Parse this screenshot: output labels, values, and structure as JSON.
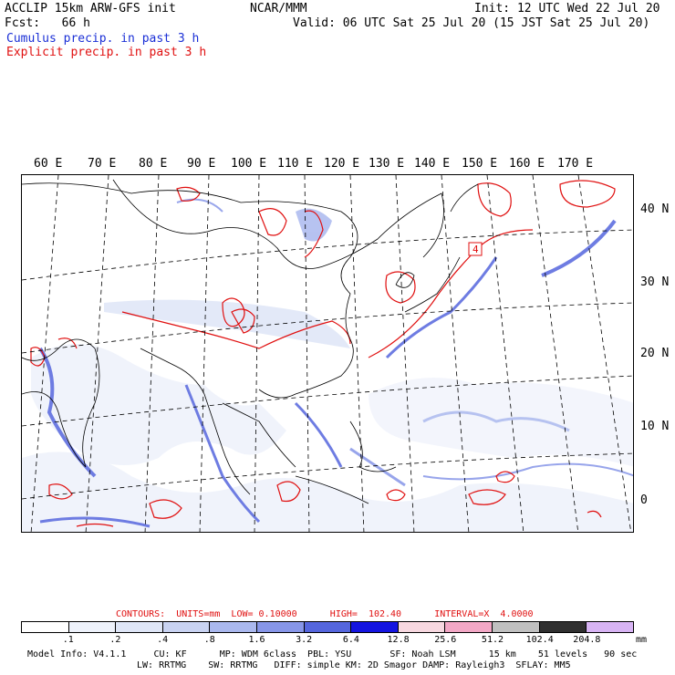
{
  "header": {
    "line1_left": "ACCLIP 15km ARW-GFS init",
    "line1_center": "NCAR/MMM",
    "line1_right": "Init: 12 UTC Wed 22 Jul 20",
    "line2_left": "Fcst:   66 h",
    "line2_right": "Valid: 06 UTC Sat 25 Jul 20 (15 JST Sat 25 Jul 20)",
    "line3": "Cumulus precip. in past 3 h",
    "line4": "Explicit precip. in past 3 h"
  },
  "map": {
    "lon_labels": [
      "60 E",
      "70 E",
      "80 E",
      "90 E",
      "100 E",
      "110 E",
      "120 E",
      "130 E",
      "140 E",
      "150 E",
      "160 E",
      "170 E"
    ],
    "lat_labels": [
      "40 N",
      "30 N",
      "20 N",
      "10 N",
      "0"
    ],
    "typhoon_marker": "4"
  },
  "legend": {
    "contours": "CONTOURS:  UNITS=mm  LOW= 0.10000      HIGH=  102.40      INTERVAL=X  4.0000",
    "labels": [
      ".1",
      ".2",
      ".4",
      ".8",
      "1.6",
      "3.2",
      "6.4",
      "12.8",
      "25.6",
      "51.2",
      "102.4",
      "204.8"
    ],
    "unit": "mm",
    "colors": [
      "#ffffff",
      "#eef2fb",
      "#dfe6f7",
      "#c9d3f2",
      "#aab8ee",
      "#8796e8",
      "#5566dd",
      "#1414e0",
      "#f7d8e0",
      "#f3a8c6",
      "#c0c0c0",
      "#303030",
      "#d8b4f4"
    ]
  },
  "footer": {
    "line1": "Model Info: V4.1.1     CU: KF      MP: WDM 6class  PBL: YSU       SF: Noah LSM      15 km    51 levels   90 sec",
    "line2": "LW: RRTMG    SW: RRTMG   DIFF: simple KM: 2D Smagor DAMP: Rayleigh3  SFLAY: MM5"
  }
}
